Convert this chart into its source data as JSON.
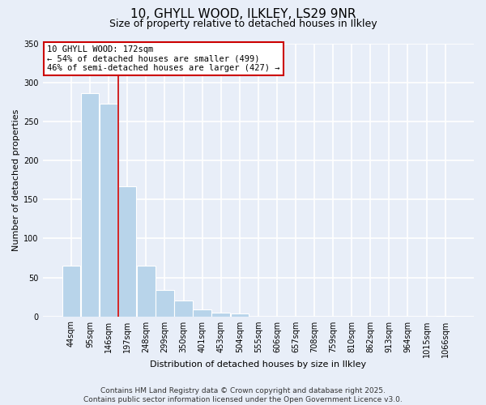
{
  "title": "10, GHYLL WOOD, ILKLEY, LS29 9NR",
  "subtitle": "Size of property relative to detached houses in Ilkley",
  "xlabel": "Distribution of detached houses by size in Ilkley",
  "ylabel": "Number of detached properties",
  "bar_color": "#b8d4ea",
  "background_color": "#e8eef8",
  "grid_color": "white",
  "categories": [
    "44sqm",
    "95sqm",
    "146sqm",
    "197sqm",
    "248sqm",
    "299sqm",
    "350sqm",
    "401sqm",
    "453sqm",
    "504sqm",
    "555sqm",
    "606sqm",
    "657sqm",
    "708sqm",
    "759sqm",
    "810sqm",
    "862sqm",
    "913sqm",
    "964sqm",
    "1015sqm",
    "1066sqm"
  ],
  "values": [
    65,
    287,
    273,
    167,
    65,
    34,
    20,
    9,
    5,
    4,
    0,
    0,
    0,
    0,
    0,
    0,
    0,
    0,
    0,
    0,
    1
  ],
  "ylim": [
    0,
    350
  ],
  "yticks": [
    0,
    50,
    100,
    150,
    200,
    250,
    300,
    350
  ],
  "red_line_index": 2,
  "marker_label": "10 GHYLL WOOD: 172sqm",
  "annotation_line1": "← 54% of detached houses are smaller (499)",
  "annotation_line2": "46% of semi-detached houses are larger (427) →",
  "annotation_box_color": "white",
  "annotation_box_edge_color": "#cc0000",
  "footer_line1": "Contains HM Land Registry data © Crown copyright and database right 2025.",
  "footer_line2": "Contains public sector information licensed under the Open Government Licence v3.0.",
  "title_fontsize": 11,
  "subtitle_fontsize": 9,
  "axis_label_fontsize": 8,
  "tick_fontsize": 7,
  "annotation_fontsize": 7.5,
  "footer_fontsize": 6.5
}
